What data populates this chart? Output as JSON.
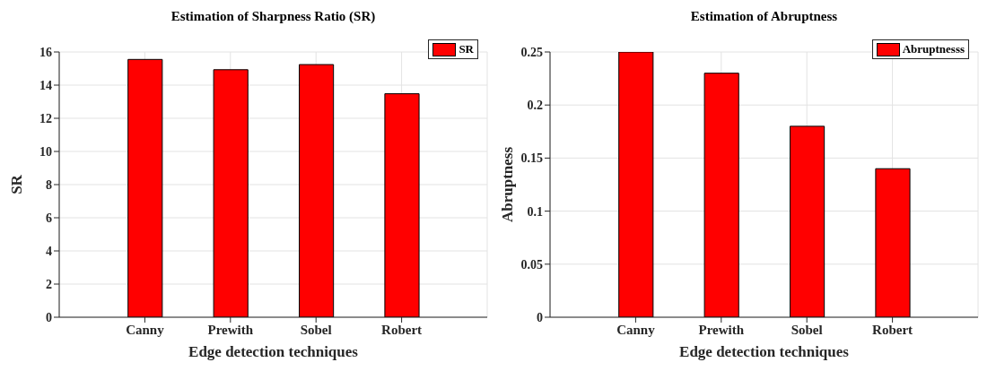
{
  "chart_data": [
    {
      "type": "bar",
      "title": "Estimation of Sharpness Ratio (SR)",
      "xlabel": "Edge detection techniques",
      "ylabel": "SR",
      "categories": [
        "Canny",
        "Prewith",
        "Sobel",
        "Robert"
      ],
      "series": [
        {
          "name": "SR",
          "color": "#ff0000",
          "values": [
            15.55,
            14.93,
            15.24,
            13.48
          ]
        }
      ],
      "ylim": [
        0,
        16
      ],
      "yticks": [
        0,
        2,
        4,
        6,
        8,
        10,
        12,
        14,
        16
      ],
      "grid": true,
      "legend": "top right"
    },
    {
      "type": "bar",
      "title": "Estimation of Abruptness",
      "xlabel": "Edge detection techniques",
      "ylabel": "Abruptness",
      "categories": [
        "Canny",
        "Prewith",
        "Sobel",
        "Robert"
      ],
      "series": [
        {
          "name": "Abruptnesss",
          "color": "#ff0000",
          "values": [
            0.25,
            0.23,
            0.18,
            0.14
          ]
        }
      ],
      "ylim": [
        0,
        0.25
      ],
      "yticks": [
        0,
        0.05,
        0.1,
        0.15,
        0.2,
        0.25
      ],
      "grid": true,
      "legend": "top right"
    }
  ]
}
